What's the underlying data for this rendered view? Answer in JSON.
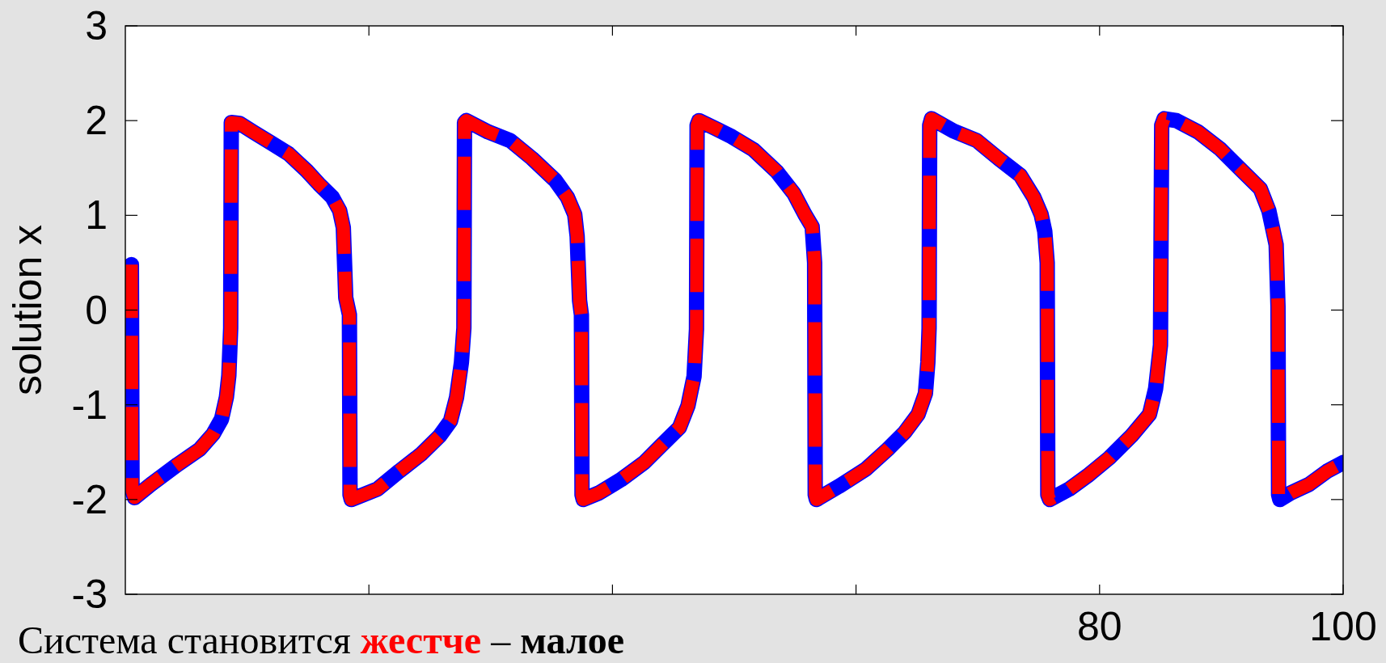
{
  "chart_data": {
    "type": "line",
    "ylabel": "solution x",
    "annotations": [
      "Система становится жестче – малое"
    ],
    "x": [
      0.5,
      0.55,
      0.75,
      2.1,
      4.3,
      6.1,
      7.2,
      7.9,
      8.3,
      8.5,
      8.65,
      8.7,
      9.4,
      10.5,
      11.9,
      13.4,
      14.9,
      15.9,
      17.0,
      17.6,
      17.9,
      18.1,
      18.4,
      18.45,
      18.55,
      20.7,
      22.5,
      24.3,
      25.8,
      26.7,
      27.2,
      27.6,
      27.8,
      27.85,
      28.0,
      29.8,
      31.6,
      33.4,
      35.3,
      36.3,
      36.9,
      37.1,
      37.3,
      37.45,
      37.5,
      37.6,
      38.9,
      40.7,
      42.6,
      44.0,
      45.5,
      46.2,
      46.7,
      46.9,
      46.95,
      47.1,
      48.4,
      49.8,
      51.6,
      53.5,
      54.9,
      55.8,
      56.4,
      56.6,
      56.65,
      56.75,
      58.6,
      60.8,
      62.6,
      64.0,
      65.1,
      65.7,
      65.9,
      66.0,
      66.05,
      66.2,
      68.0,
      69.9,
      71.7,
      73.5,
      74.6,
      75.2,
      75.5,
      75.7,
      75.75,
      75.9,
      77.5,
      79.0,
      80.8,
      82.6,
      84.1,
      84.6,
      85.0,
      85.1,
      85.3,
      86.3,
      88.1,
      89.9,
      91.7,
      93.2,
      93.9,
      94.5,
      94.65,
      94.7,
      94.8,
      95.7,
      97.2,
      98.7,
      100
    ],
    "series": [
      {
        "color": "#0000ff",
        "line_style": "solid",
        "values": [
          0.48,
          -1.9,
          -1.98,
          -1.84,
          -1.63,
          -1.47,
          -1.31,
          -1.15,
          -0.92,
          -0.69,
          -0.19,
          1.98,
          1.97,
          1.88,
          1.77,
          1.65,
          1.47,
          1.33,
          1.19,
          1.05,
          0.87,
          0.13,
          -0.05,
          -1.95,
          -2.0,
          -1.89,
          -1.7,
          -1.52,
          -1.33,
          -1.17,
          -0.92,
          -0.55,
          -0.19,
          1.98,
          2.0,
          1.88,
          1.79,
          1.6,
          1.37,
          1.19,
          1.01,
          0.78,
          0.1,
          -0.05,
          -1.95,
          -2.0,
          -1.93,
          -1.79,
          -1.61,
          -1.43,
          -1.24,
          -1.01,
          -0.7,
          -0.2,
          1.95,
          2.0,
          1.92,
          1.83,
          1.69,
          1.46,
          1.23,
          1.01,
          0.88,
          0.5,
          -1.95,
          -2.0,
          -1.86,
          -1.68,
          -1.47,
          -1.29,
          -1.1,
          -0.88,
          -0.55,
          -0.19,
          1.95,
          2.02,
          1.89,
          1.79,
          1.6,
          1.42,
          1.19,
          1.01,
          0.83,
          0.5,
          -1.95,
          -2.0,
          -1.89,
          -1.75,
          -1.56,
          -1.33,
          -1.1,
          -0.83,
          -0.37,
          1.95,
          2.02,
          2.0,
          1.88,
          1.7,
          1.47,
          1.28,
          1.05,
          0.69,
          0.04,
          -1.95,
          -2.0,
          -1.93,
          -1.84,
          -1.7,
          -1.61
        ]
      },
      {
        "color": "#ff0000",
        "line_style": "dashed",
        "values": [
          0.48,
          -1.9,
          -1.98,
          -1.84,
          -1.63,
          -1.47,
          -1.31,
          -1.15,
          -0.92,
          -0.69,
          -0.19,
          1.98,
          1.97,
          1.88,
          1.77,
          1.65,
          1.47,
          1.33,
          1.19,
          1.05,
          0.87,
          0.13,
          -0.05,
          -1.95,
          -2.0,
          -1.89,
          -1.7,
          -1.52,
          -1.33,
          -1.17,
          -0.92,
          -0.55,
          -0.19,
          1.98,
          2.0,
          1.88,
          1.79,
          1.6,
          1.37,
          1.19,
          1.01,
          0.78,
          0.1,
          -0.05,
          -1.95,
          -2.0,
          -1.93,
          -1.79,
          -1.61,
          -1.43,
          -1.24,
          -1.01,
          -0.7,
          -0.2,
          1.95,
          2.0,
          1.92,
          1.83,
          1.69,
          1.46,
          1.23,
          1.01,
          0.88,
          0.5,
          -1.95,
          -2.0,
          -1.86,
          -1.68,
          -1.47,
          -1.29,
          -1.1,
          -0.88,
          -0.55,
          -0.19,
          1.95,
          2.02,
          1.89,
          1.79,
          1.6,
          1.42,
          1.19,
          1.01,
          0.83,
          0.5,
          -1.95,
          -2.0,
          -1.89,
          -1.75,
          -1.56,
          -1.33,
          -1.1,
          -0.83,
          -0.37,
          1.95,
          2.02,
          2.0,
          1.88,
          1.7,
          1.47,
          1.28,
          1.05,
          0.69,
          0.04,
          -1.95,
          -2.0,
          -1.93,
          -1.84,
          -1.7,
          -1.61
        ]
      }
    ],
    "xlim": [
      0,
      100
    ],
    "ylim": [
      -3,
      3
    ],
    "xticks": [
      {
        "value": 20,
        "label": null
      },
      {
        "value": 40,
        "label": null
      },
      {
        "value": 60,
        "label": null
      },
      80,
      100
    ],
    "yticks": [
      -3,
      -2,
      -1,
      0,
      1,
      2,
      3
    ]
  }
}
